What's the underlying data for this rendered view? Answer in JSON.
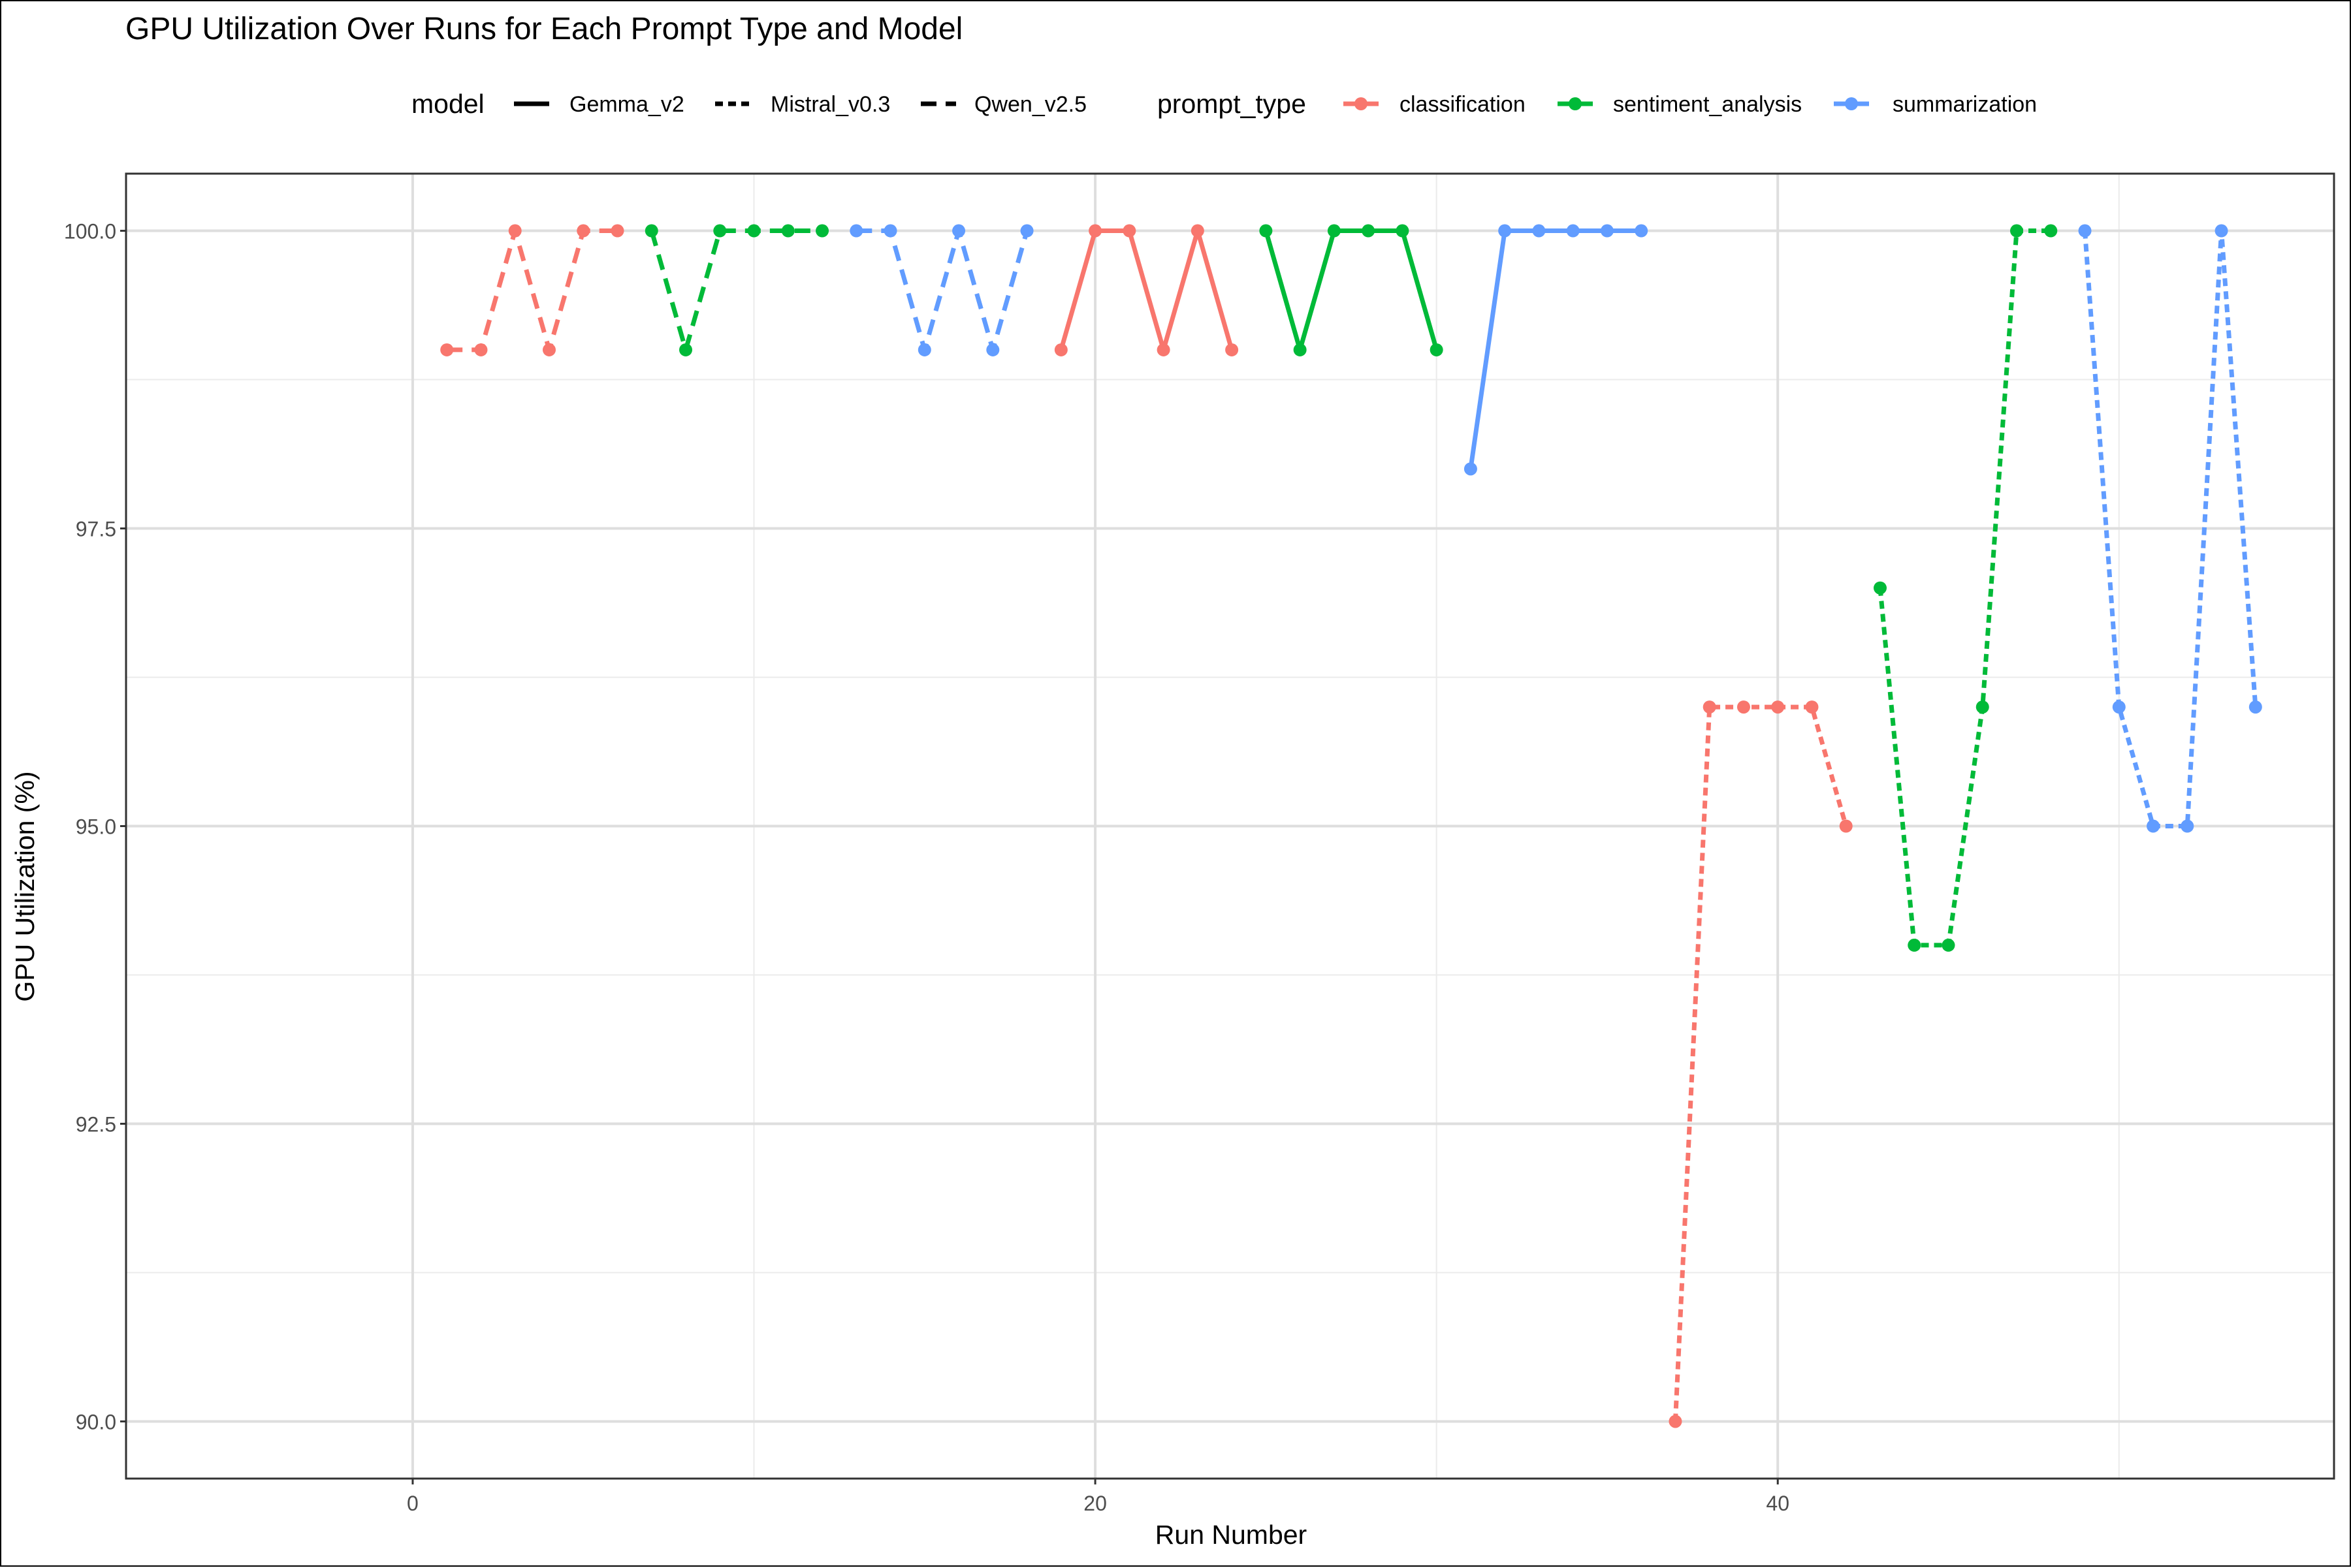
{
  "chart_data": {
    "type": "line",
    "title": "GPU Utilization Over Runs for Each Prompt Type and Model",
    "xlabel": "Run Number",
    "ylabel": "GPU Utilization (%)",
    "xlim": [
      -8.4,
      56.3
    ],
    "ylim": [
      89.52,
      100.48
    ],
    "x_ticks": [
      0,
      20,
      40
    ],
    "x_minor_ticks": [
      10,
      30,
      50
    ],
    "y_ticks": [
      90.0,
      92.5,
      95.0,
      97.5,
      100.0
    ],
    "y_tick_labels": [
      "90.0",
      "92.5",
      "95.0",
      "97.5",
      "100.0"
    ],
    "y_minor_ticks": [
      91.25,
      93.75,
      96.25,
      98.75
    ],
    "grid": true,
    "legend_position": "top",
    "legend": {
      "model_title": "model",
      "models": [
        {
          "name": "Gemma_v2",
          "dash": "solid"
        },
        {
          "name": "Mistral_v0.3",
          "dash": "dotted"
        },
        {
          "name": "Qwen_v2.5",
          "dash": "dashed"
        }
      ],
      "prompt_title": "prompt_type",
      "prompt_types": [
        {
          "name": "classification",
          "color": "#F8766D"
        },
        {
          "name": "sentiment_analysis",
          "color": "#00BA38"
        },
        {
          "name": "summarization",
          "color": "#619CFF"
        }
      ]
    },
    "series": [
      {
        "model": "Qwen_v2.5",
        "prompt_type": "classification",
        "x": [
          1,
          2,
          3,
          4,
          5,
          6
        ],
        "y": [
          99,
          99,
          100,
          99,
          100,
          100
        ]
      },
      {
        "model": "Qwen_v2.5",
        "prompt_type": "sentiment_analysis",
        "x": [
          7,
          8,
          9,
          10,
          11,
          12
        ],
        "y": [
          100,
          99,
          100,
          100,
          100,
          100
        ]
      },
      {
        "model": "Qwen_v2.5",
        "prompt_type": "summarization",
        "x": [
          13,
          14,
          15,
          16,
          17,
          18
        ],
        "y": [
          100,
          100,
          99,
          100,
          99,
          100
        ]
      },
      {
        "model": "Gemma_v2",
        "prompt_type": "classification",
        "x": [
          19,
          20,
          21,
          22,
          23,
          24
        ],
        "y": [
          99,
          100,
          100,
          99,
          100,
          99
        ]
      },
      {
        "model": "Gemma_v2",
        "prompt_type": "sentiment_analysis",
        "x": [
          25,
          26,
          27,
          28,
          29,
          30
        ],
        "y": [
          100,
          99,
          100,
          100,
          100,
          99
        ]
      },
      {
        "model": "Gemma_v2",
        "prompt_type": "summarization",
        "x": [
          31,
          32,
          33,
          34,
          35,
          36
        ],
        "y": [
          98,
          100,
          100,
          100,
          100,
          100
        ]
      },
      {
        "model": "Mistral_v0.3",
        "prompt_type": "classification",
        "x": [
          37,
          38,
          39,
          40,
          41,
          42
        ],
        "y": [
          90,
          96,
          96,
          96,
          96,
          95
        ]
      },
      {
        "model": "Mistral_v0.3",
        "prompt_type": "sentiment_analysis",
        "x": [
          43,
          44,
          45,
          46,
          47,
          48
        ],
        "y": [
          97,
          94,
          94,
          96,
          100,
          100
        ]
      },
      {
        "model": "Mistral_v0.3",
        "prompt_type": "summarization",
        "x": [
          49,
          50,
          51,
          52,
          53,
          54
        ],
        "y": [
          100,
          96,
          95,
          95,
          100,
          96
        ]
      }
    ]
  }
}
